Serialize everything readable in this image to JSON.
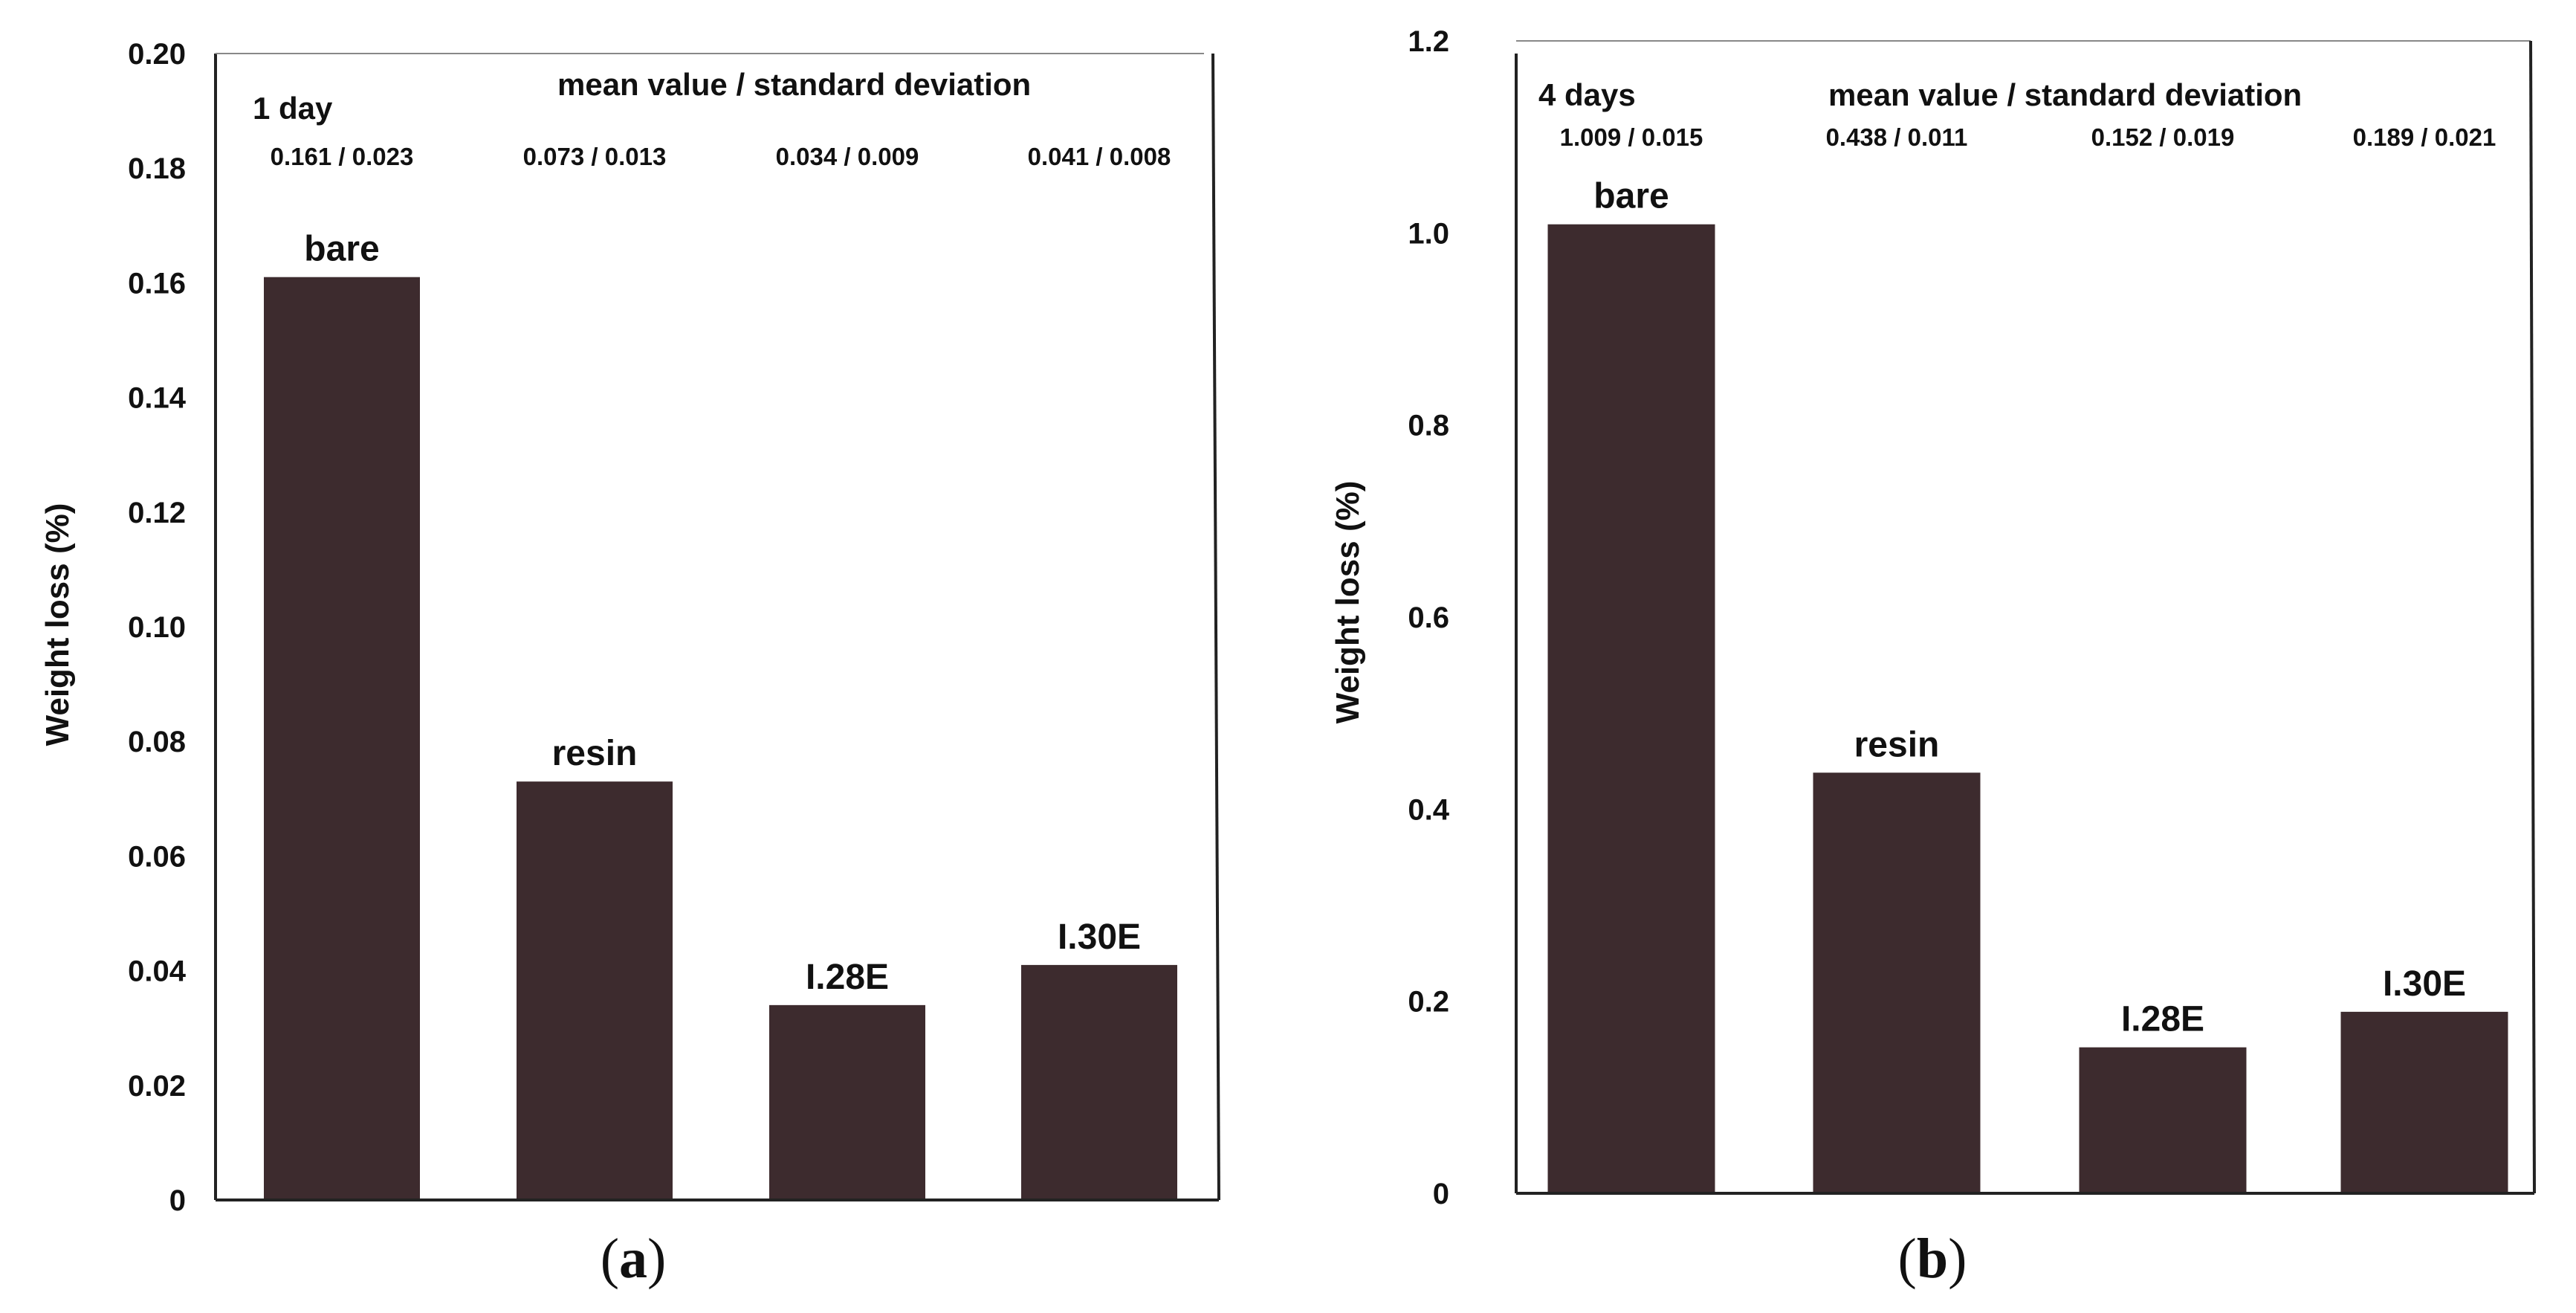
{
  "colors": {
    "bar": "#3d2b2e",
    "axis": "#222222",
    "background": "#ffffff"
  },
  "chart_data": [
    {
      "type": "bar",
      "title": "",
      "period_label": "1 day",
      "stats_header": "mean value  / standard deviation",
      "categories": [
        "bare",
        "resin",
        "I.28E",
        "I.30E"
      ],
      "values": [
        0.161,
        0.073,
        0.034,
        0.041
      ],
      "stats_labels": [
        "0.161 / 0.023",
        "0.073 / 0.013",
        "0.034 / 0.009",
        "0.041 / 0.008"
      ],
      "xlabel": "",
      "ylabel": "Weight loss (%)",
      "ylim": [
        0,
        0.2
      ],
      "yticks": [
        "0",
        "0.02",
        "0.04",
        "0.06",
        "0.08",
        "0.10",
        "0.12",
        "0.14",
        "0.16",
        "0.18",
        "0.20"
      ],
      "grid": false,
      "caption_letter": "a"
    },
    {
      "type": "bar",
      "title": "",
      "period_label": "4 days",
      "stats_header": "mean value / standard deviation",
      "categories": [
        "bare",
        "resin",
        "I.28E",
        "I.30E"
      ],
      "values": [
        1.009,
        0.438,
        0.152,
        0.189
      ],
      "stats_labels": [
        "1.009 / 0.015",
        "0.438 / 0.011",
        "0.152 / 0.019",
        "0.189 / 0.021"
      ],
      "xlabel": "",
      "ylabel": "Weight loss (%)",
      "ylim": [
        0,
        1.2
      ],
      "yticks": [
        "0",
        "0.2",
        "0.4",
        "0.6",
        "0.8",
        "1.0",
        "1.2"
      ],
      "grid": false,
      "caption_letter": "b"
    }
  ]
}
